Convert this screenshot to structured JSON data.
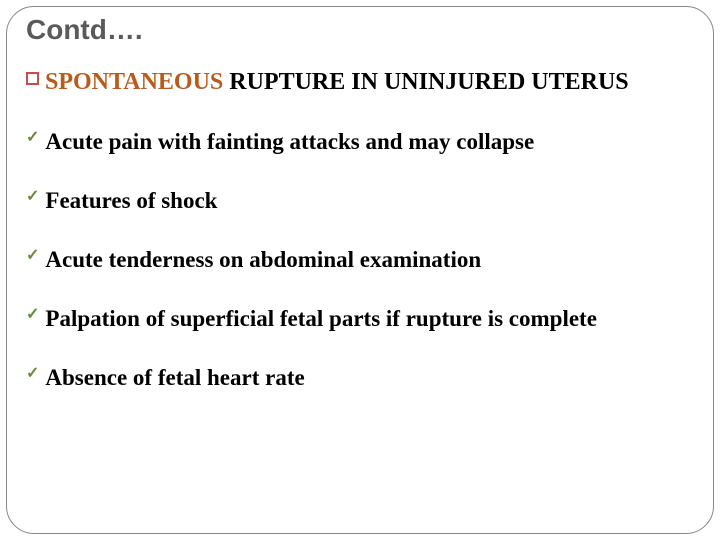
{
  "title": "Contd….",
  "section": {
    "bullet_color": "#c0504d",
    "highlight_text": "SPONTANEOUS",
    "highlight_color": "#b85c1e",
    "rest_text": " RUPTURE IN UNINJURED UTERUS"
  },
  "bullets": [
    "Acute pain with fainting attacks and may collapse",
    "Features of shock",
    "Acute tenderness on abdominal examination",
    "Palpation of superficial fetal parts if rupture is complete",
    "Absence of fetal heart rate"
  ],
  "check_color": "#6a8a3a",
  "fonts": {
    "title_size": 28,
    "section_size": 24,
    "bullet_size": 23
  }
}
